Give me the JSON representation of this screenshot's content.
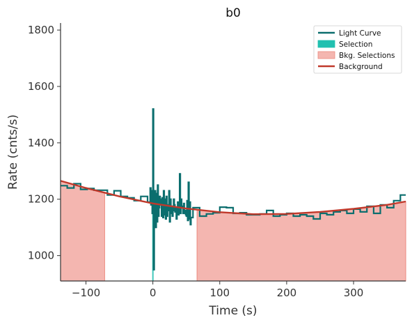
{
  "chart_data": {
    "type": "line",
    "title": "b0",
    "xlabel": "Time (s)",
    "ylabel": "Rate (cnts/s)",
    "xlim": [
      -138,
      378
    ],
    "ylim": [
      910,
      1825
    ],
    "x_ticks": [
      -100,
      0,
      100,
      200,
      300
    ],
    "y_ticks": [
      1000,
      1200,
      1400,
      1600,
      1800
    ],
    "x_tick_labels": [
      "−100",
      "0",
      "100",
      "200",
      "300"
    ],
    "y_tick_labels": [
      "1000",
      "1200",
      "1400",
      "1600",
      "1800"
    ],
    "grid": false,
    "legend_position": "top-right",
    "legend": [
      {
        "label": "Light Curve",
        "kind": "line",
        "color": "#0b6e6e"
      },
      {
        "label": "Selection",
        "kind": "patch",
        "color": "#21c0b0"
      },
      {
        "label": "Bkg. Selections",
        "kind": "patch",
        "color": "#f4b6b0"
      },
      {
        "label": "Background",
        "kind": "line",
        "color": "#c0392b"
      }
    ],
    "colors": {
      "light_curve": "#0b6e6e",
      "selection": "#21c0b0",
      "bkg_selection": "#f4b6b0",
      "bkg_selection_edge": "#ec8a80",
      "background": "#c0392b"
    },
    "background_fit": {
      "name": "Background",
      "x": [
        -138,
        -100,
        -50,
        0,
        50,
        100,
        150,
        200,
        250,
        300,
        350,
        378
      ],
      "y": [
        1265,
        1240,
        1210,
        1185,
        1167,
        1154,
        1147,
        1148,
        1155,
        1166,
        1180,
        1192
      ]
    },
    "bkg_selections": [
      [
        -138,
        -72
      ],
      [
        66,
        378
      ]
    ],
    "source_selection": [
      -1,
      1
    ],
    "light_curve": {
      "name": "Light Curve",
      "step_x": [
        -138,
        -128,
        -118,
        -108,
        -98,
        -88,
        -78,
        -68,
        -58,
        -48,
        -38,
        -28,
        -18,
        -8,
        -4,
        -3,
        -2,
        -1,
        0,
        1,
        2,
        3,
        4,
        5,
        6,
        7,
        8,
        9,
        10,
        11,
        12,
        13,
        14,
        15,
        16,
        17,
        18,
        19,
        20,
        21,
        22,
        23,
        24,
        25,
        26,
        27,
        28,
        29,
        30,
        31,
        32,
        33,
        34,
        35,
        36,
        37,
        38,
        39,
        40,
        41,
        42,
        43,
        44,
        45,
        46,
        47,
        48,
        49,
        50,
        51,
        52,
        53,
        54,
        55,
        56,
        57,
        60,
        70,
        80,
        90,
        100,
        110,
        120,
        130,
        140,
        150,
        160,
        170,
        180,
        190,
        200,
        210,
        220,
        230,
        240,
        250,
        260,
        270,
        280,
        290,
        300,
        310,
        320,
        330,
        340,
        350,
        360,
        370,
        378
      ],
      "step_y": [
        1248,
        1240,
        1255,
        1235,
        1238,
        1232,
        1232,
        1215,
        1230,
        1210,
        1205,
        1195,
        1210,
        1190,
        1240,
        1180,
        1230,
        1150,
        1520,
        950,
        1180,
        1230,
        1100,
        1220,
        1120,
        1250,
        1140,
        1170,
        1210,
        1180,
        1200,
        1140,
        1205,
        1135,
        1230,
        1145,
        1200,
        1130,
        1210,
        1140,
        1160,
        1180,
        1230,
        1120,
        1200,
        1150,
        1175,
        1140,
        1160,
        1200,
        1180,
        1155,
        1170,
        1130,
        1150,
        1190,
        1145,
        1160,
        1290,
        1150,
        1200,
        1170,
        1175,
        1150,
        1185,
        1150,
        1160,
        1145,
        1140,
        1195,
        1125,
        1260,
        1130,
        1190,
        1110,
        1135,
        1170,
        1140,
        1148,
        1152,
        1172,
        1170,
        1150,
        1152,
        1145,
        1145,
        1148,
        1160,
        1140,
        1145,
        1150,
        1140,
        1145,
        1140,
        1130,
        1150,
        1145,
        1155,
        1160,
        1150,
        1165,
        1155,
        1175,
        1150,
        1180,
        1170,
        1195,
        1215,
        1215
      ]
    }
  }
}
